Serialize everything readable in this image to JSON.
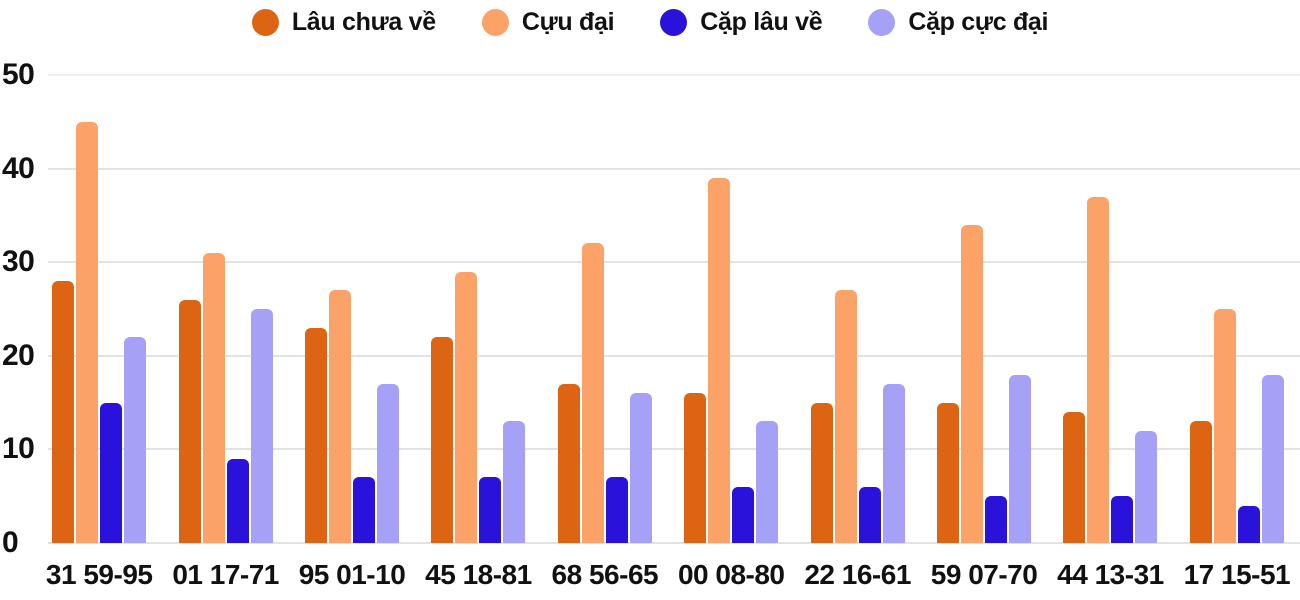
{
  "chart_data": {
    "type": "bar",
    "title": "",
    "xlabel": "",
    "ylabel": "",
    "categories": [
      "31 59-95",
      "01 17-71",
      "95 01-10",
      "45 18-81",
      "68 56-65",
      "00 08-80",
      "22 16-61",
      "59 07-70",
      "44 13-31",
      "17 15-51"
    ],
    "series": [
      {
        "name": "Lâu chưa về",
        "color": "#dd6413",
        "values": [
          28,
          26,
          23,
          22,
          17,
          16,
          15,
          15,
          14,
          13
        ]
      },
      {
        "name": "Cựu đại",
        "color": "#fba269",
        "values": [
          45,
          31,
          27,
          29,
          32,
          39,
          27,
          34,
          37,
          25
        ]
      },
      {
        "name": "Cặp lâu về",
        "color": "#2a12db",
        "values": [
          15,
          9,
          7,
          7,
          7,
          6,
          6,
          5,
          5,
          4
        ]
      },
      {
        "name": "Cặp cực đại",
        "color": "#a6a0f6",
        "values": [
          22,
          25,
          17,
          13,
          16,
          13,
          17,
          18,
          12,
          18
        ]
      }
    ],
    "ylim": [
      0,
      50
    ],
    "yticks": [
      0,
      10,
      20,
      30,
      40,
      50
    ],
    "ytick_labels_desc": [
      "50",
      "40",
      "30",
      "20",
      "10",
      "0"
    ],
    "grid": true,
    "legend_position": "top-center",
    "background_color": "#ffffff",
    "text_color": "#111111",
    "gridline_color": "#e2e2e2"
  }
}
